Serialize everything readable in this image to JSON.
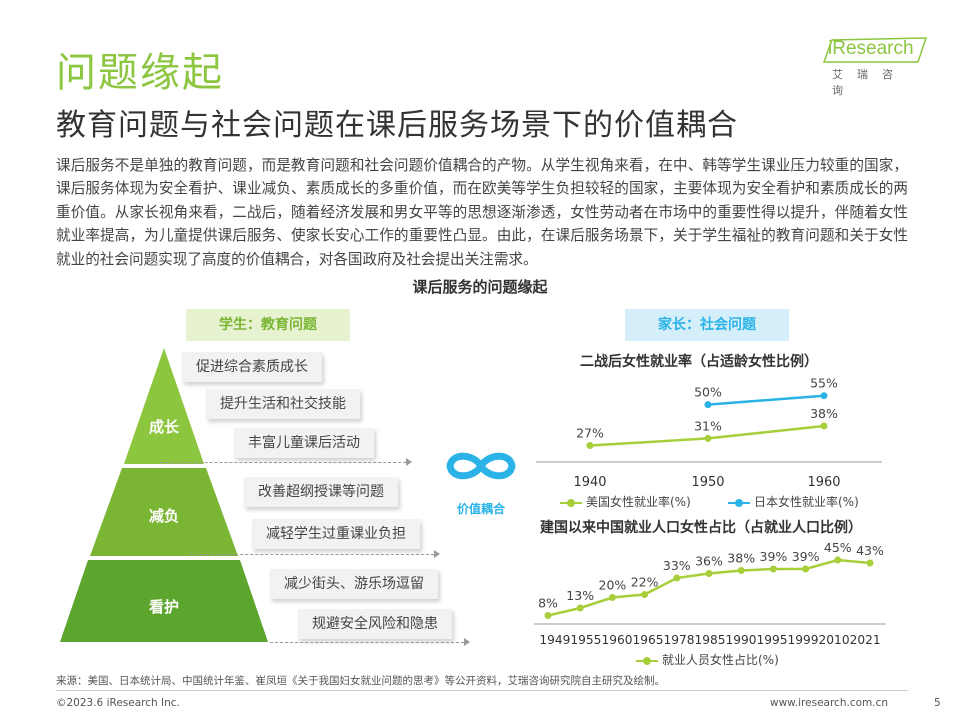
{
  "header": {
    "title": "问题缘起",
    "subtitle": "教育问题与社会问题在课后服务场景下的价值耦合",
    "logo_text": "iResearch",
    "logo_sub": "艾瑞咨询"
  },
  "intro": "课后服务不是单独的教育问题，而是教育问题和社会问题价值耦合的产物。从学生视角来看，在中、韩等学生课业压力较重的国家，课后服务体现为安全看护、课业减负、素质成长的多重价值，而在欧美等学生负担较轻的国家，主要体现为安全看护和素质成长的两重价值。从家长视角来看，二战后，随着经济发展和男女平等的思想逐渐渗透，女性劳动者在市场中的重要性得以提升，伴随着女性就业率提高，为儿童提供课后服务、使家长安心工作的重要性凸显。由此，在课后服务场景下，关于学生福祉的教育问题和关于女性就业的社会问题实现了高度的价值耦合，对各国政府及社会提出关注需求。",
  "section_title": "课后服务的问题缘起",
  "student": {
    "pill": "学生：教育问题",
    "levels": [
      {
        "label": "成长",
        "items": [
          "促进综合素质成长",
          "提升生活和社交技能",
          "丰富儿童课后活动"
        ]
      },
      {
        "label": "减负",
        "items": [
          "改善超纲授课等问题",
          "减轻学生过重课业负担"
        ]
      },
      {
        "label": "看护",
        "items": [
          "减少街头、游乐场逗留",
          "规避安全风险和隐患"
        ]
      }
    ],
    "colors": {
      "top": "#8cc63f",
      "mid": "#7ab534",
      "bottom": "#5da62e"
    }
  },
  "link_label": "价值耦合",
  "link_icon": "infinity-icon",
  "parent": {
    "pill": "家长：社会问题"
  },
  "chart_data": [
    {
      "type": "line",
      "title": "二战后女性就业率（占适龄女性比例）",
      "x": [
        "1940",
        "1950",
        "1960"
      ],
      "series": [
        {
          "name": "美国女性就业率(%)",
          "values": [
            27,
            31,
            38
          ],
          "labels": [
            "27%",
            "31%",
            "38%"
          ],
          "color": "#a6cf3a"
        },
        {
          "name": "日本女性就业率(%)",
          "values": [
            null,
            50,
            55
          ],
          "labels": [
            "",
            "50%",
            "55%"
          ],
          "color": "#2bb3e8"
        }
      ]
    },
    {
      "type": "line",
      "title": "建国以来中国就业人口女性占比（占就业人口比例）",
      "x": [
        "1949",
        "1955",
        "1960",
        "1965",
        "1978",
        "1985",
        "1990",
        "1995",
        "1999",
        "2010",
        "2021"
      ],
      "x_axis_text": "19491955196019651978198519901995199920102021",
      "series": [
        {
          "name": "就业人员女性占比(%)",
          "values": [
            8,
            13,
            20,
            22,
            33,
            36,
            38,
            39,
            39,
            45,
            43
          ],
          "labels": [
            "8%",
            "13%",
            "20%",
            "22%",
            "33%",
            "36%",
            "38%",
            "39%",
            "39%",
            "45%",
            "43%"
          ],
          "color": "#a6cf3a"
        }
      ]
    }
  ],
  "footer": {
    "source": "来源：美国、日本统计局、中国统计年鉴、崔凤垣《关于我国妇女就业问题的思考》等公开资料，艾瑞咨询研究院自主研究及绘制。",
    "copyright": "©2023.6 iResearch Inc.",
    "website": "www.iresearch.com.cn",
    "page": "5"
  }
}
